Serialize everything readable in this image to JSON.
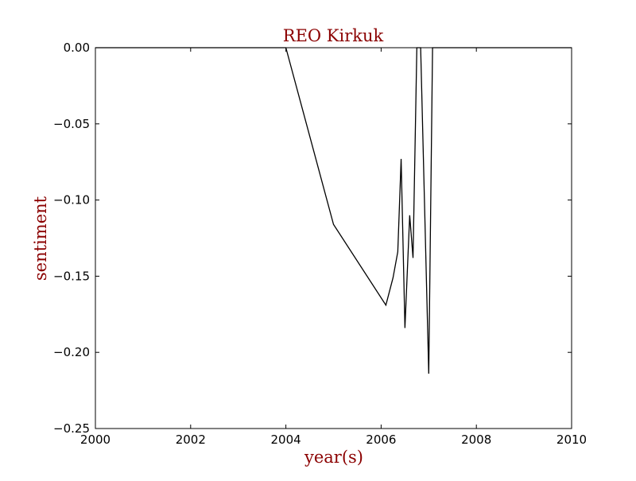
{
  "chart_data": {
    "type": "line",
    "title": "REO Kirkuk",
    "xlabel": "year(s)",
    "ylabel": "sentiment",
    "xlim": [
      2000,
      2010
    ],
    "ylim": [
      -0.25,
      0.0
    ],
    "xticks": [
      "2000",
      "2002",
      "2004",
      "2006",
      "2008",
      "2010"
    ],
    "yticks": [
      "0.00",
      "−0.05",
      "−0.10",
      "−0.15",
      "−0.20",
      "−0.25"
    ],
    "grid": false,
    "series": [
      {
        "x": [
          2000.0,
          2004.0,
          2005.0,
          2006.1,
          2006.25,
          2006.35,
          2006.42,
          2006.5,
          2006.6,
          2006.67,
          2006.75,
          2006.77,
          2006.83,
          2007.0,
          2007.08,
          2007.1,
          2010.0
        ],
        "y": [
          0.0,
          0.0,
          -0.116,
          -0.169,
          -0.151,
          -0.134,
          -0.073,
          -0.184,
          -0.11,
          -0.138,
          0.0,
          0.0,
          0.0,
          -0.214,
          0.0,
          0.0,
          0.0
        ]
      }
    ]
  },
  "colors": {
    "title": "#8b0000",
    "line": "#000000",
    "axis": "#000000",
    "background": "#ffffff"
  }
}
